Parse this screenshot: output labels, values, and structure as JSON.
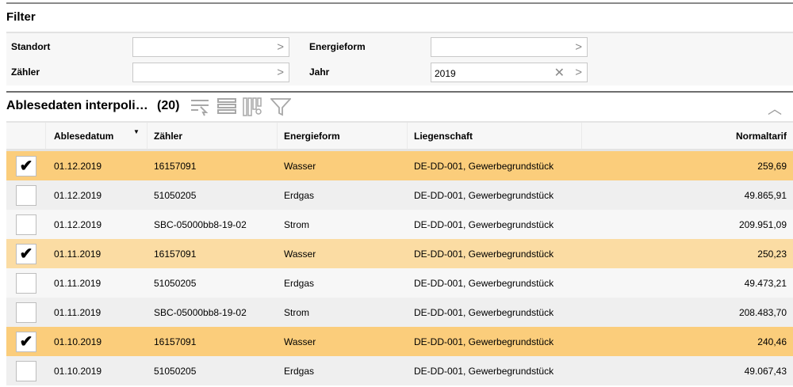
{
  "filter": {
    "title": "Filter",
    "standort": {
      "label": "Standort",
      "value": ""
    },
    "zaehler": {
      "label": "Zähler",
      "value": ""
    },
    "energieform": {
      "label": "Energieform",
      "value": ""
    },
    "jahr": {
      "label": "Jahr",
      "value": "2019"
    }
  },
  "section": {
    "title": "Ablesedaten interpoli…",
    "count": "(20)"
  },
  "table": {
    "columns": [
      "Ablesedatum",
      "Zähler",
      "Energieform",
      "Liegenschaft",
      "Normaltarif"
    ],
    "sorted_column": "Ablesedatum",
    "rows": [
      {
        "checked": true,
        "cells": [
          "01.12.2019",
          "16157091",
          "Wasser",
          "DE-DD-001, Gewerbegrundstück",
          "259,69"
        ]
      },
      {
        "checked": false,
        "cells": [
          "01.12.2019",
          "51050205",
          "Erdgas",
          "DE-DD-001, Gewerbegrundstück",
          "49.865,91"
        ]
      },
      {
        "checked": false,
        "cells": [
          "01.12.2019",
          "SBC-05000bb8-19-02",
          "Strom",
          "DE-DD-001, Gewerbegrundstück",
          "209.951,09"
        ]
      },
      {
        "checked": true,
        "cells": [
          "01.11.2019",
          "16157091",
          "Wasser",
          "DE-DD-001, Gewerbegrundstück",
          "250,23"
        ]
      },
      {
        "checked": false,
        "cells": [
          "01.11.2019",
          "51050205",
          "Erdgas",
          "DE-DD-001, Gewerbegrundstück",
          "49.473,21"
        ]
      },
      {
        "checked": false,
        "cells": [
          "01.11.2019",
          "SBC-05000bb8-19-02",
          "Strom",
          "DE-DD-001, Gewerbegrundstück",
          "208.483,70"
        ]
      },
      {
        "checked": true,
        "cells": [
          "01.10.2019",
          "16157091",
          "Wasser",
          "DE-DD-001, Gewerbegrundstück",
          "240,46"
        ]
      },
      {
        "checked": false,
        "cells": [
          "01.10.2019",
          "51050205",
          "Erdgas",
          "DE-DD-001, Gewerbegrundstück",
          "49.067,43"
        ]
      }
    ]
  },
  "colors": {
    "selected_row": "#fbcd7b",
    "hover_selected_row": "#fbdca3"
  }
}
